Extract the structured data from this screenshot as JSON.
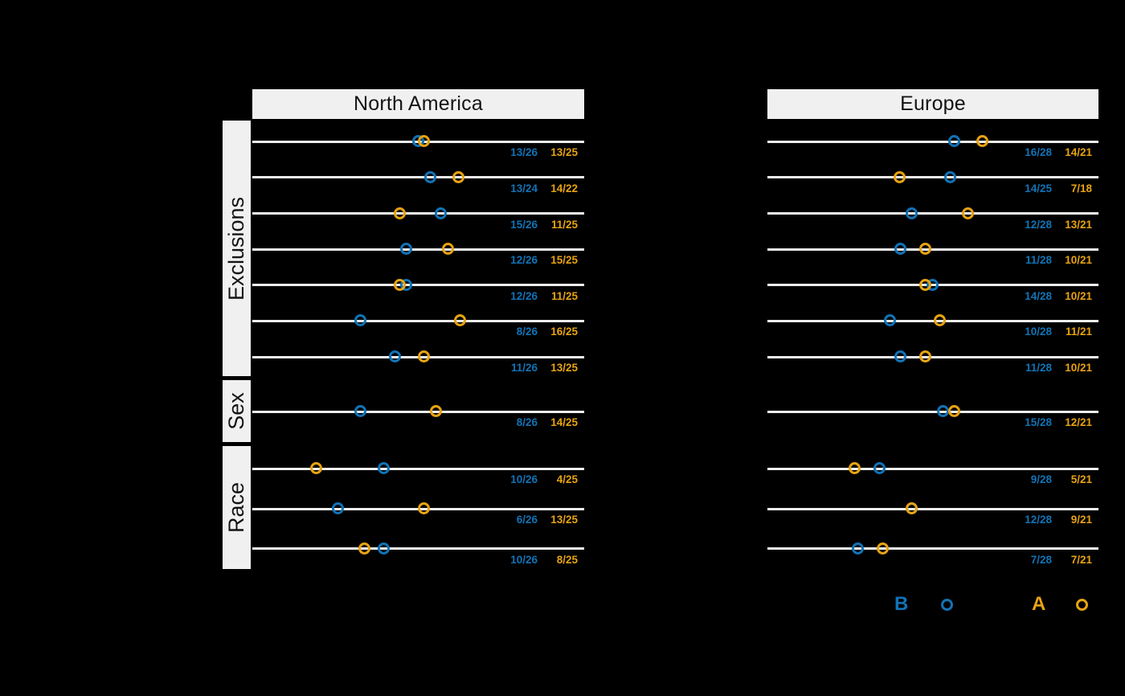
{
  "chart_data": {
    "type": "scatter",
    "subtype": "paired-dot-plot",
    "x_range": [
      0,
      1
    ],
    "x_axis_visible": false,
    "grid": "one horizontal line per row",
    "facets": [
      {
        "label": "Exclusions",
        "rows": 7
      },
      {
        "label": "Sex",
        "rows": 1
      },
      {
        "label": "Race",
        "rows": 3
      }
    ],
    "series": [
      {
        "key": "B",
        "legend_label": "B",
        "color": "#1173b6",
        "marker": "open-circle"
      },
      {
        "key": "A",
        "legend_label": "A",
        "color": "#e7a312",
        "marker": "open-circle"
      }
    ],
    "legend": {
      "position": "bottom-right",
      "items": [
        {
          "label": "B"
        },
        {
          "label": "A"
        }
      ]
    },
    "panels": [
      {
        "title": "North America",
        "rows": [
          {
            "facet": "Exclusions",
            "B": "13/26",
            "A": "13/25"
          },
          {
            "facet": "Exclusions",
            "B": "13/24",
            "A": "14/22"
          },
          {
            "facet": "Exclusions",
            "B": "15/26",
            "A": "11/25"
          },
          {
            "facet": "Exclusions",
            "B": "12/26",
            "A": "15/25"
          },
          {
            "facet": "Exclusions",
            "B": "12/26",
            "A": "11/25"
          },
          {
            "facet": "Exclusions",
            "B": "8/26",
            "A": "16/25"
          },
          {
            "facet": "Exclusions",
            "B": "11/26",
            "A": "13/25"
          },
          {
            "facet": "Sex",
            "B": "8/26",
            "A": "14/25"
          },
          {
            "facet": "Race",
            "B": "10/26",
            "A": "4/25"
          },
          {
            "facet": "Race",
            "B": "6/26",
            "A": "13/25"
          },
          {
            "facet": "Race",
            "B": "10/26",
            "A": "8/25"
          }
        ]
      },
      {
        "title": "Europe",
        "rows": [
          {
            "facet": "Exclusions",
            "B": "16/28",
            "A": "14/21"
          },
          {
            "facet": "Exclusions",
            "B": "14/25",
            "A": "7/18"
          },
          {
            "facet": "Exclusions",
            "B": "12/28",
            "A": "13/21"
          },
          {
            "facet": "Exclusions",
            "B": "11/28",
            "A": "10/21"
          },
          {
            "facet": "Exclusions",
            "B": "14/28",
            "A": "10/21"
          },
          {
            "facet": "Exclusions",
            "B": "10/28",
            "A": "11/21"
          },
          {
            "facet": "Exclusions",
            "B": "11/28",
            "A": "10/21"
          },
          {
            "facet": "Sex",
            "B": "15/28",
            "A": "12/21"
          },
          {
            "facet": "Race",
            "B": "9/28",
            "A": "5/21"
          },
          {
            "facet": "Race",
            "B": "12/28",
            "A": "9/21"
          },
          {
            "facet": "Race",
            "B": "7/28",
            "A": "7/21"
          }
        ]
      }
    ],
    "colors": {
      "background": "#000000",
      "row_line": "#efefef",
      "facet_box_bg": "#f0f0f0",
      "header_bg": "#f0f0f0",
      "header_text": "#141414",
      "series_b": "#1173b6",
      "series_a": "#e7a312"
    }
  }
}
